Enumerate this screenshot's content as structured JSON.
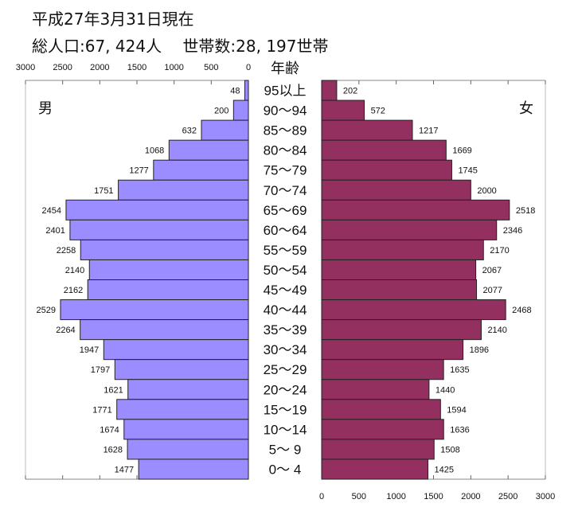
{
  "header": {
    "date_line": "平成27年3月31日現在",
    "totals_line": "総人口:67, 424人　 世帯数:28, 197世帯"
  },
  "chart_data": {
    "type": "bar",
    "orientation": "horizontal-population-pyramid",
    "center_label": "年齢",
    "categories": [
      "95以上",
      "90～94",
      "85～89",
      "80～84",
      "75～79",
      "70～74",
      "65～69",
      "60～64",
      "55～59",
      "50～54",
      "45～49",
      "40～44",
      "35～39",
      "30～34",
      "25～29",
      "20～24",
      "15～19",
      "10～14",
      "5～ 9",
      "0～ 4"
    ],
    "series": [
      {
        "name": "男",
        "values": [
          48,
          200,
          632,
          1068,
          1277,
          1751,
          2454,
          2401,
          2258,
          2140,
          2162,
          2529,
          2264,
          1947,
          1797,
          1621,
          1771,
          1674,
          1628,
          1477
        ],
        "color": "#9b8cff"
      },
      {
        "name": "女",
        "values": [
          202,
          572,
          1217,
          1669,
          1745,
          2000,
          2518,
          2346,
          2170,
          2067,
          2077,
          2468,
          2140,
          1896,
          1635,
          1440,
          1594,
          1636,
          1508,
          1425
        ],
        "color": "#933060"
      }
    ],
    "xlim": [
      0,
      3000
    ],
    "male_ticks": [
      "3000",
      "2500",
      "2000",
      "1500",
      "1000",
      "500",
      "0"
    ],
    "female_ticks": [
      "0",
      "500",
      "1000",
      "1500",
      "2000",
      "2500",
      "3000"
    ],
    "grid": false
  }
}
